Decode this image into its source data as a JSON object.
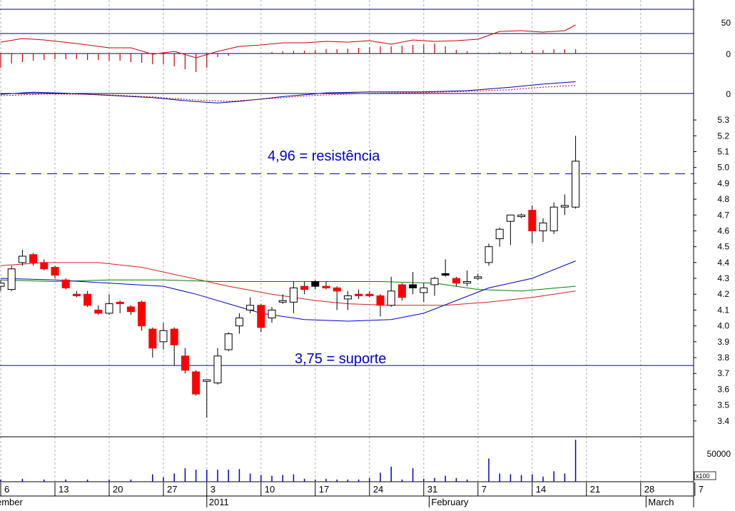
{
  "chart_data": {
    "type": "candlestick",
    "annotations": {
      "resistance_label": "4,96 = resistência",
      "resistance_value": 4.96,
      "support_label": "3,75 = suporte",
      "support_value": 3.75
    },
    "x_axis": {
      "tick_labels": [
        "6",
        "13",
        "20",
        "27",
        "3",
        "10",
        "17",
        "24",
        "31",
        "7",
        "14",
        "21",
        "28",
        "7"
      ],
      "tick_index": [
        0,
        10,
        20,
        30,
        38,
        48,
        58,
        68,
        78,
        88,
        98,
        108,
        118,
        128
      ],
      "month_labels": [
        {
          "label": "ember",
          "index": 0
        },
        {
          "label": "2011",
          "index": 38
        },
        {
          "label": "February",
          "index": 79
        },
        {
          "label": "March",
          "index": 119
        }
      ]
    },
    "price_axis": {
      "ticks": [
        3.4,
        3.5,
        3.6,
        3.7,
        3.8,
        3.9,
        4.0,
        4.1,
        4.2,
        4.3,
        4.4,
        4.5,
        4.6,
        4.7,
        4.8,
        4.9,
        5.0,
        5.1,
        5.2,
        5.3
      ],
      "range": [
        3.3,
        5.35
      ]
    },
    "indicator_axes": {
      "rsi_ticks": [
        "50"
      ],
      "histogram_ticks": [
        "0"
      ],
      "macd_ticks": [
        "0"
      ],
      "volume_ticks": [
        "50000"
      ],
      "volume_multiplier": "x100"
    },
    "colors": {
      "up_candle": "#ffffff",
      "down_candle": "#ff0000",
      "black_candle": "#000000",
      "annotation": "#0000cc",
      "ma_long": "#d42020",
      "ma_mid": "#008000",
      "ma_short": "#0000cc",
      "volume": "#0000cc",
      "rsi": "#cc0000",
      "macd_line": "#0000aa",
      "macd_signal": "#cc0000",
      "grid": "#b0b0b0"
    },
    "candles": [
      {
        "i": 0,
        "o": 4.25,
        "h": 4.29,
        "l": 4.22,
        "c": 4.27,
        "k": "up"
      },
      {
        "i": 2,
        "o": 4.23,
        "h": 4.38,
        "l": 4.22,
        "c": 4.36,
        "k": "up"
      },
      {
        "i": 4,
        "o": 4.4,
        "h": 4.48,
        "l": 4.38,
        "c": 4.44,
        "k": "up"
      },
      {
        "i": 6,
        "o": 4.45,
        "h": 4.46,
        "l": 4.38,
        "c": 4.4,
        "k": "down"
      },
      {
        "i": 8,
        "o": 4.4,
        "h": 4.42,
        "l": 4.35,
        "c": 4.36,
        "k": "down"
      },
      {
        "i": 10,
        "o": 4.37,
        "h": 4.38,
        "l": 4.3,
        "c": 4.32,
        "k": "down"
      },
      {
        "i": 12,
        "o": 4.29,
        "h": 4.3,
        "l": 4.23,
        "c": 4.24,
        "k": "down"
      },
      {
        "i": 14,
        "o": 4.2,
        "h": 4.22,
        "l": 4.18,
        "c": 4.19,
        "k": "down"
      },
      {
        "i": 16,
        "o": 4.2,
        "h": 4.22,
        "l": 4.12,
        "c": 4.13,
        "k": "down"
      },
      {
        "i": 18,
        "o": 4.1,
        "h": 4.13,
        "l": 4.07,
        "c": 4.08,
        "k": "down"
      },
      {
        "i": 20,
        "o": 4.08,
        "h": 4.2,
        "l": 4.07,
        "c": 4.14,
        "k": "up"
      },
      {
        "i": 22,
        "o": 4.15,
        "h": 4.16,
        "l": 4.08,
        "c": 4.14,
        "k": "down"
      },
      {
        "i": 24,
        "o": 4.12,
        "h": 4.13,
        "l": 4.07,
        "c": 4.09,
        "k": "down"
      },
      {
        "i": 26,
        "o": 4.15,
        "h": 4.16,
        "l": 3.97,
        "c": 4.0,
        "k": "down"
      },
      {
        "i": 28,
        "o": 3.98,
        "h": 3.99,
        "l": 3.8,
        "c": 3.86,
        "k": "down"
      },
      {
        "i": 30,
        "o": 3.9,
        "h": 4.02,
        "l": 3.85,
        "c": 3.97,
        "k": "up"
      },
      {
        "i": 32,
        "o": 3.98,
        "h": 3.99,
        "l": 3.75,
        "c": 3.88,
        "k": "down"
      },
      {
        "i": 34,
        "o": 3.81,
        "h": 3.86,
        "l": 3.7,
        "c": 3.72,
        "k": "down"
      },
      {
        "i": 36,
        "o": 3.71,
        "h": 3.72,
        "l": 3.56,
        "c": 3.57,
        "k": "down"
      },
      {
        "i": 38,
        "o": 3.65,
        "h": 3.66,
        "l": 3.42,
        "c": 3.66,
        "k": "up"
      },
      {
        "i": 40,
        "o": 3.64,
        "h": 3.86,
        "l": 3.63,
        "c": 3.81,
        "k": "up"
      },
      {
        "i": 42,
        "o": 3.85,
        "h": 3.96,
        "l": 3.84,
        "c": 3.95,
        "k": "up"
      },
      {
        "i": 44,
        "o": 4.0,
        "h": 4.08,
        "l": 3.95,
        "c": 4.05,
        "k": "up"
      },
      {
        "i": 46,
        "o": 4.1,
        "h": 4.18,
        "l": 4.08,
        "c": 4.13,
        "k": "up"
      },
      {
        "i": 48,
        "o": 4.13,
        "h": 4.14,
        "l": 3.96,
        "c": 3.99,
        "k": "down"
      },
      {
        "i": 50,
        "o": 4.05,
        "h": 4.12,
        "l": 4.02,
        "c": 4.1,
        "k": "up"
      },
      {
        "i": 52,
        "o": 4.15,
        "h": 4.2,
        "l": 4.14,
        "c": 4.16,
        "k": "up"
      },
      {
        "i": 54,
        "o": 4.15,
        "h": 4.28,
        "l": 4.08,
        "c": 4.24,
        "k": "up"
      },
      {
        "i": 56,
        "o": 4.25,
        "h": 4.28,
        "l": 4.2,
        "c": 4.23,
        "k": "down"
      },
      {
        "i": 58,
        "o": 4.25,
        "h": 4.29,
        "l": 4.23,
        "c": 4.28,
        "k": "black"
      },
      {
        "i": 60,
        "o": 4.25,
        "h": 4.28,
        "l": 4.23,
        "c": 4.24,
        "k": "down"
      },
      {
        "i": 62,
        "o": 4.24,
        "h": 4.25,
        "l": 4.1,
        "c": 4.22,
        "k": "down"
      },
      {
        "i": 64,
        "o": 4.17,
        "h": 4.22,
        "l": 4.1,
        "c": 4.19,
        "k": "up"
      },
      {
        "i": 66,
        "o": 4.2,
        "h": 4.23,
        "l": 4.17,
        "c": 4.19,
        "k": "down"
      },
      {
        "i": 68,
        "o": 4.2,
        "h": 4.22,
        "l": 4.18,
        "c": 4.19,
        "k": "down"
      },
      {
        "i": 70,
        "o": 4.19,
        "h": 4.2,
        "l": 4.06,
        "c": 4.13,
        "k": "down"
      },
      {
        "i": 72,
        "o": 4.13,
        "h": 4.31,
        "l": 4.12,
        "c": 4.22,
        "k": "up"
      },
      {
        "i": 74,
        "o": 4.26,
        "h": 4.27,
        "l": 4.16,
        "c": 4.18,
        "k": "down"
      },
      {
        "i": 76,
        "o": 4.24,
        "h": 4.34,
        "l": 4.2,
        "c": 4.26,
        "k": "black"
      },
      {
        "i": 78,
        "o": 4.21,
        "h": 4.27,
        "l": 4.15,
        "c": 4.24,
        "k": "up"
      },
      {
        "i": 80,
        "o": 4.26,
        "h": 4.31,
        "l": 4.19,
        "c": 4.3,
        "k": "up"
      },
      {
        "i": 82,
        "o": 4.32,
        "h": 4.42,
        "l": 4.31,
        "c": 4.33,
        "k": "black"
      },
      {
        "i": 84,
        "o": 4.3,
        "h": 4.31,
        "l": 4.25,
        "c": 4.27,
        "k": "down"
      },
      {
        "i": 86,
        "o": 4.27,
        "h": 4.35,
        "l": 4.25,
        "c": 4.28,
        "k": "up"
      },
      {
        "i": 88,
        "o": 4.3,
        "h": 4.33,
        "l": 4.29,
        "c": 4.31,
        "k": "up"
      },
      {
        "i": 90,
        "o": 4.4,
        "h": 4.52,
        "l": 4.38,
        "c": 4.5,
        "k": "up"
      },
      {
        "i": 92,
        "o": 4.55,
        "h": 4.62,
        "l": 4.5,
        "c": 4.61,
        "k": "up"
      },
      {
        "i": 94,
        "o": 4.66,
        "h": 4.7,
        "l": 4.51,
        "c": 4.7,
        "k": "up"
      },
      {
        "i": 96,
        "o": 4.69,
        "h": 4.71,
        "l": 4.68,
        "c": 4.7,
        "k": "up"
      },
      {
        "i": 98,
        "o": 4.73,
        "h": 4.76,
        "l": 4.52,
        "c": 4.6,
        "k": "down"
      },
      {
        "i": 100,
        "o": 4.6,
        "h": 4.68,
        "l": 4.53,
        "c": 4.65,
        "k": "up"
      },
      {
        "i": 102,
        "o": 4.6,
        "h": 4.78,
        "l": 4.58,
        "c": 4.75,
        "k": "up"
      },
      {
        "i": 104,
        "o": 4.75,
        "h": 4.83,
        "l": 4.7,
        "c": 4.76,
        "k": "up"
      },
      {
        "i": 106,
        "o": 4.75,
        "h": 5.2,
        "l": 4.74,
        "c": 5.04,
        "k": "up"
      }
    ],
    "moving_averages": [
      {
        "name": "ma_long",
        "color": "#d42020",
        "points": [
          [
            0,
            4.38
          ],
          [
            8,
            4.4
          ],
          [
            18,
            4.4
          ],
          [
            26,
            4.37
          ],
          [
            34,
            4.31
          ],
          [
            42,
            4.25
          ],
          [
            50,
            4.2
          ],
          [
            58,
            4.16
          ],
          [
            64,
            4.14
          ],
          [
            72,
            4.13
          ],
          [
            82,
            4.13
          ],
          [
            90,
            4.15
          ],
          [
            98,
            4.18
          ],
          [
            106,
            4.22
          ]
        ]
      },
      {
        "name": "ma_mid",
        "color": "#008000",
        "points": [
          [
            0,
            4.29
          ],
          [
            10,
            4.28
          ],
          [
            20,
            4.29
          ],
          [
            30,
            4.29
          ],
          [
            40,
            4.28
          ],
          [
            50,
            4.28
          ],
          [
            60,
            4.28
          ],
          [
            70,
            4.28
          ],
          [
            80,
            4.27
          ],
          [
            88,
            4.23
          ],
          [
            96,
            4.22
          ],
          [
            106,
            4.25
          ]
        ]
      },
      {
        "name": "ma_short",
        "color": "#0000cc",
        "points": [
          [
            0,
            4.3
          ],
          [
            10,
            4.29
          ],
          [
            20,
            4.27
          ],
          [
            30,
            4.25
          ],
          [
            36,
            4.2
          ],
          [
            42,
            4.14
          ],
          [
            48,
            4.08
          ],
          [
            56,
            4.04
          ],
          [
            64,
            4.03
          ],
          [
            72,
            4.04
          ],
          [
            78,
            4.08
          ],
          [
            84,
            4.16
          ],
          [
            90,
            4.24
          ],
          [
            98,
            4.3
          ],
          [
            106,
            4.41
          ]
        ]
      }
    ],
    "volume": [
      [
        0,
        3
      ],
      [
        4,
        4
      ],
      [
        8,
        3
      ],
      [
        12,
        3
      ],
      [
        16,
        3
      ],
      [
        20,
        3
      ],
      [
        24,
        3
      ],
      [
        28,
        10
      ],
      [
        30,
        6
      ],
      [
        32,
        11
      ],
      [
        34,
        18
      ],
      [
        36,
        16
      ],
      [
        38,
        16
      ],
      [
        40,
        16
      ],
      [
        42,
        16
      ],
      [
        44,
        17
      ],
      [
        46,
        11
      ],
      [
        48,
        9
      ],
      [
        50,
        8
      ],
      [
        52,
        9
      ],
      [
        54,
        10
      ],
      [
        56,
        4
      ],
      [
        58,
        3
      ],
      [
        60,
        4
      ],
      [
        62,
        3
      ],
      [
        64,
        3
      ],
      [
        66,
        3
      ],
      [
        68,
        5
      ],
      [
        70,
        12
      ],
      [
        72,
        20
      ],
      [
        74,
        3
      ],
      [
        76,
        18
      ],
      [
        78,
        4
      ],
      [
        80,
        5
      ],
      [
        82,
        8
      ],
      [
        84,
        5
      ],
      [
        86,
        3
      ],
      [
        90,
        31
      ],
      [
        92,
        11
      ],
      [
        94,
        10
      ],
      [
        96,
        9
      ],
      [
        98,
        10
      ],
      [
        100,
        7
      ],
      [
        102,
        14
      ],
      [
        104,
        11
      ],
      [
        106,
        56
      ]
    ],
    "volume_max": 60,
    "rsi": [
      [
        0,
        44
      ],
      [
        4,
        49
      ],
      [
        8,
        47
      ],
      [
        14,
        42
      ],
      [
        20,
        36
      ],
      [
        24,
        36
      ],
      [
        28,
        27
      ],
      [
        32,
        31
      ],
      [
        36,
        22
      ],
      [
        40,
        31
      ],
      [
        44,
        38
      ],
      [
        48,
        40
      ],
      [
        52,
        43
      ],
      [
        56,
        43
      ],
      [
        60,
        45
      ],
      [
        64,
        44
      ],
      [
        68,
        46
      ],
      [
        72,
        41
      ],
      [
        76,
        47
      ],
      [
        80,
        45
      ],
      [
        84,
        46
      ],
      [
        88,
        48
      ],
      [
        92,
        59
      ],
      [
        96,
        60
      ],
      [
        100,
        58
      ],
      [
        104,
        60
      ],
      [
        106,
        68
      ]
    ],
    "rsi_range": [
      0,
      100
    ],
    "histogram": [
      [
        0,
        -20
      ],
      [
        2,
        -14
      ],
      [
        4,
        -12
      ],
      [
        6,
        -10
      ],
      [
        8,
        -9
      ],
      [
        10,
        -8
      ],
      [
        12,
        -8
      ],
      [
        14,
        -8
      ],
      [
        16,
        -9
      ],
      [
        18,
        -9
      ],
      [
        20,
        -10
      ],
      [
        22,
        -10
      ],
      [
        24,
        -12
      ],
      [
        26,
        -13
      ],
      [
        28,
        -15
      ],
      [
        30,
        -15
      ],
      [
        32,
        -18
      ],
      [
        34,
        -22
      ],
      [
        36,
        -26
      ],
      [
        38,
        -20
      ],
      [
        40,
        -5
      ],
      [
        42,
        -3
      ],
      [
        50,
        2
      ],
      [
        52,
        3
      ],
      [
        54,
        4
      ],
      [
        56,
        4
      ],
      [
        58,
        5
      ],
      [
        60,
        6
      ],
      [
        62,
        6
      ],
      [
        64,
        7
      ],
      [
        66,
        8
      ],
      [
        68,
        9
      ],
      [
        70,
        10
      ],
      [
        72,
        10
      ],
      [
        74,
        11
      ],
      [
        76,
        12
      ],
      [
        78,
        13
      ],
      [
        80,
        14
      ],
      [
        82,
        10
      ],
      [
        84,
        5
      ],
      [
        86,
        3
      ],
      [
        88,
        1
      ],
      [
        90,
        1
      ],
      [
        92,
        2
      ],
      [
        94,
        2
      ],
      [
        96,
        3
      ],
      [
        98,
        4
      ],
      [
        100,
        5
      ],
      [
        102,
        6
      ],
      [
        104,
        6
      ],
      [
        106,
        6
      ]
    ],
    "macd_line": [
      [
        0,
        -0.5
      ],
      [
        6,
        0.8
      ],
      [
        12,
        0.2
      ],
      [
        20,
        -1.2
      ],
      [
        28,
        -2.6
      ],
      [
        36,
        -5.2
      ],
      [
        40,
        -6.0
      ],
      [
        44,
        -5.0
      ],
      [
        52,
        -2.0
      ],
      [
        60,
        0.4
      ],
      [
        68,
        1.0
      ],
      [
        78,
        1.0
      ],
      [
        86,
        1.8
      ],
      [
        94,
        4.0
      ],
      [
        100,
        6.0
      ],
      [
        106,
        7.5
      ]
    ],
    "macd_signal": [
      [
        0,
        -1.4
      ],
      [
        8,
        -0.3
      ],
      [
        18,
        -0.6
      ],
      [
        28,
        -2.2
      ],
      [
        36,
        -4.2
      ],
      [
        42,
        -5.0
      ],
      [
        50,
        -3.2
      ],
      [
        58,
        -1.2
      ],
      [
        68,
        0.2
      ],
      [
        78,
        0.6
      ],
      [
        86,
        1.3
      ],
      [
        94,
        2.4
      ],
      [
        100,
        4.0
      ],
      [
        106,
        5.2
      ]
    ]
  }
}
